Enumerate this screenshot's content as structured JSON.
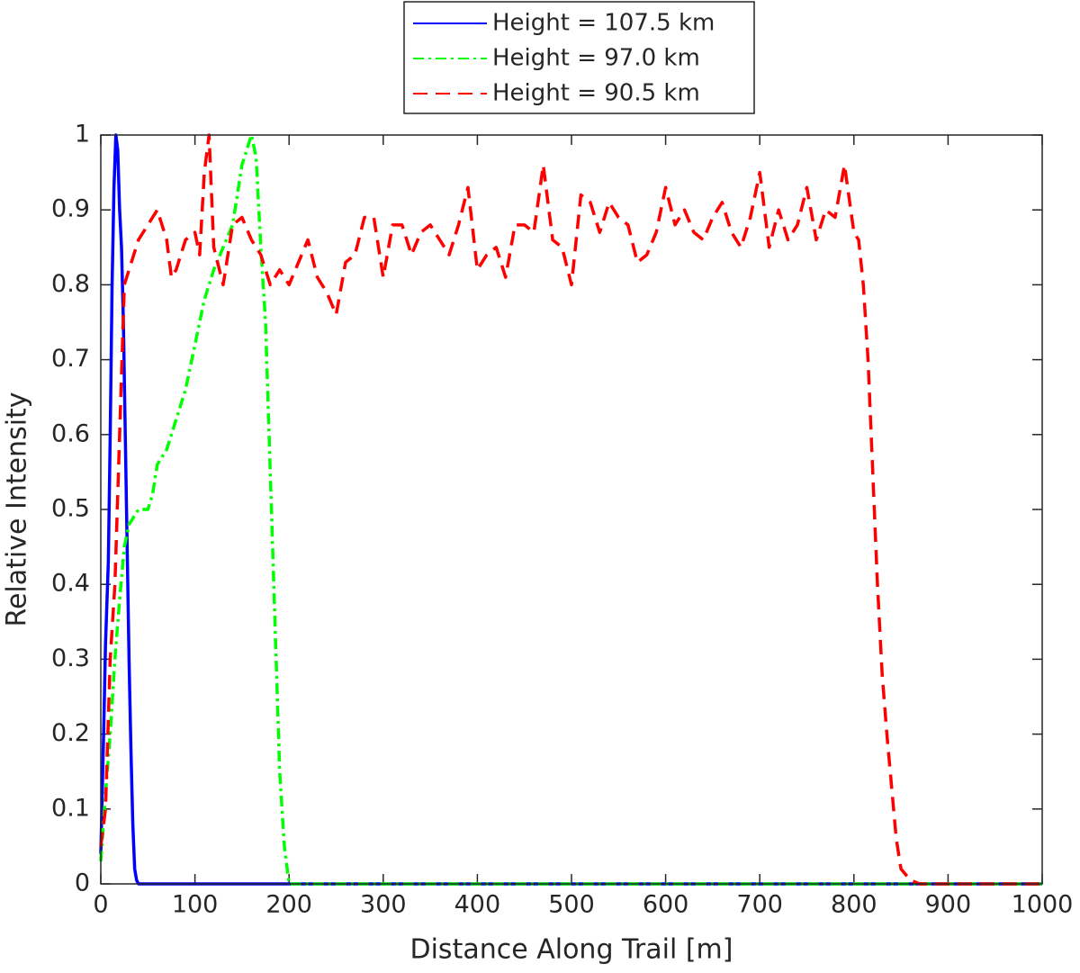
{
  "chart_data": {
    "type": "line",
    "x_label": "Distance Along Trail [m]",
    "y_label": "Relative Intensity",
    "xlim": [
      0,
      1000
    ],
    "ylim": [
      0,
      1
    ],
    "xticks": [
      0,
      100,
      200,
      300,
      400,
      500,
      600,
      700,
      800,
      900,
      1000
    ],
    "yticks": [
      0,
      0.1,
      0.2,
      0.3,
      0.4,
      0.5,
      0.6,
      0.7,
      0.8,
      0.9,
      1
    ],
    "legend": "top-outside",
    "series": [
      {
        "name": "Height = 107.5 km",
        "color": "#0000ff",
        "line_style": "solid",
        "x": [
          0,
          3,
          5,
          8,
          10,
          12,
          14,
          16,
          18,
          20,
          22,
          24,
          26,
          28,
          30,
          32,
          34,
          36,
          38,
          40,
          1000
        ],
        "values": [
          0.04,
          0.2,
          0.32,
          0.43,
          0.6,
          0.8,
          0.93,
          1.0,
          0.98,
          0.9,
          0.85,
          0.75,
          0.6,
          0.45,
          0.3,
          0.18,
          0.08,
          0.02,
          0.005,
          0,
          0
        ]
      },
      {
        "name": "Height = 97.0 km",
        "color": "#00ff00",
        "line_style": "dashdot",
        "x": [
          0,
          5,
          10,
          15,
          20,
          25,
          30,
          40,
          50,
          55,
          60,
          70,
          80,
          90,
          100,
          110,
          120,
          130,
          140,
          145,
          150,
          160,
          165,
          170,
          175,
          180,
          185,
          190,
          195,
          200,
          1000
        ],
        "values": [
          0.03,
          0.12,
          0.2,
          0.3,
          0.38,
          0.45,
          0.48,
          0.5,
          0.5,
          0.52,
          0.56,
          0.58,
          0.62,
          0.66,
          0.72,
          0.78,
          0.82,
          0.85,
          0.88,
          0.92,
          0.96,
          1.0,
          0.97,
          0.85,
          0.75,
          0.55,
          0.35,
          0.15,
          0.05,
          0,
          0
        ]
      },
      {
        "name": "Height = 90.5 km",
        "color": "#ff0000",
        "line_style": "dashed",
        "x": [
          0,
          5,
          10,
          15,
          20,
          25,
          30,
          40,
          50,
          60,
          70,
          75,
          80,
          90,
          100,
          105,
          110,
          115,
          120,
          130,
          140,
          150,
          160,
          170,
          180,
          190,
          200,
          210,
          220,
          230,
          240,
          250,
          260,
          270,
          280,
          290,
          300,
          310,
          320,
          330,
          340,
          350,
          360,
          370,
          380,
          390,
          400,
          410,
          420,
          430,
          440,
          450,
          460,
          470,
          480,
          490,
          500,
          510,
          520,
          530,
          540,
          550,
          560,
          570,
          580,
          590,
          600,
          610,
          620,
          630,
          640,
          650,
          660,
          670,
          680,
          690,
          700,
          710,
          720,
          730,
          740,
          750,
          760,
          770,
          780,
          790,
          800,
          805,
          810,
          815,
          820,
          825,
          830,
          835,
          840,
          845,
          850,
          860,
          870,
          1000
        ],
        "values": [
          0.05,
          0.1,
          0.3,
          0.4,
          0.6,
          0.8,
          0.82,
          0.86,
          0.88,
          0.9,
          0.86,
          0.81,
          0.82,
          0.86,
          0.87,
          0.84,
          0.95,
          1.0,
          0.85,
          0.8,
          0.88,
          0.89,
          0.86,
          0.84,
          0.8,
          0.82,
          0.8,
          0.83,
          0.86,
          0.81,
          0.79,
          0.76,
          0.83,
          0.84,
          0.89,
          0.89,
          0.81,
          0.88,
          0.88,
          0.84,
          0.87,
          0.88,
          0.86,
          0.84,
          0.88,
          0.93,
          0.82,
          0.84,
          0.85,
          0.81,
          0.88,
          0.88,
          0.87,
          0.96,
          0.86,
          0.85,
          0.8,
          0.92,
          0.91,
          0.87,
          0.91,
          0.89,
          0.88,
          0.83,
          0.84,
          0.87,
          0.93,
          0.88,
          0.9,
          0.87,
          0.86,
          0.89,
          0.91,
          0.87,
          0.85,
          0.89,
          0.95,
          0.85,
          0.9,
          0.86,
          0.88,
          0.93,
          0.86,
          0.9,
          0.89,
          0.96,
          0.87,
          0.86,
          0.8,
          0.7,
          0.55,
          0.4,
          0.28,
          0.2,
          0.13,
          0.06,
          0.02,
          0.005,
          0,
          0
        ]
      }
    ]
  }
}
